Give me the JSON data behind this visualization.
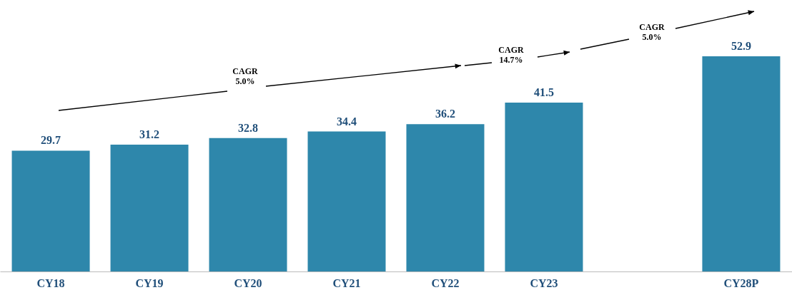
{
  "chart_data": {
    "type": "bar",
    "categories": [
      "CY18",
      "CY19",
      "CY20",
      "CY21",
      "CY22",
      "CY23",
      null,
      "CY28P"
    ],
    "values": [
      29.7,
      31.2,
      32.8,
      34.4,
      36.2,
      41.5,
      null,
      52.9
    ],
    "color": "#2e87ab",
    "data_labels": true,
    "annotations": [
      "CAGR\n5.0%",
      "CAGR\n14.7%",
      "CAGR\n5.0%"
    ]
  }
}
